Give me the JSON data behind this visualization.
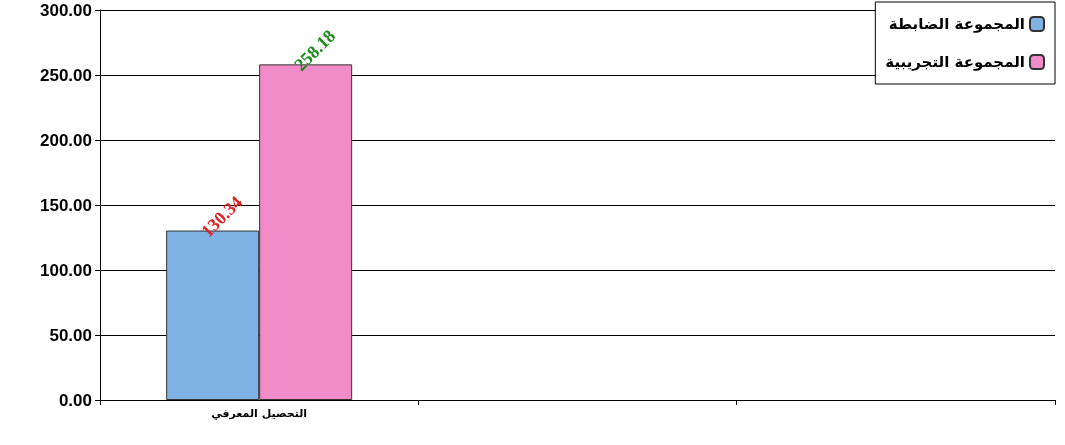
{
  "chart_data": {
    "type": "bar",
    "categories": [
      "التحصيل المعرفي",
      null,
      null
    ],
    "series": [
      {
        "name": "المجموعة الضابطة",
        "color": "#7fb3e6",
        "values": [
          130.34,
          null,
          null
        ]
      },
      {
        "name": "المجموعة التجريبية",
        "color": "#f28cc8",
        "values": [
          258.18,
          null,
          null
        ]
      }
    ],
    "ylim": [
      0,
      300
    ],
    "yticks": [
      {
        "value": 0,
        "label": "0.00"
      },
      {
        "value": 50,
        "label": "50.00"
      },
      {
        "value": 100,
        "label": "100.00"
      },
      {
        "value": 150,
        "label": "150.00"
      },
      {
        "value": 200,
        "label": "200.00"
      },
      {
        "value": 250,
        "label": "250.00"
      },
      {
        "value": 300,
        "label": "300.00"
      }
    ],
    "grid": "y",
    "legend": "top right",
    "data_labels": true
  }
}
